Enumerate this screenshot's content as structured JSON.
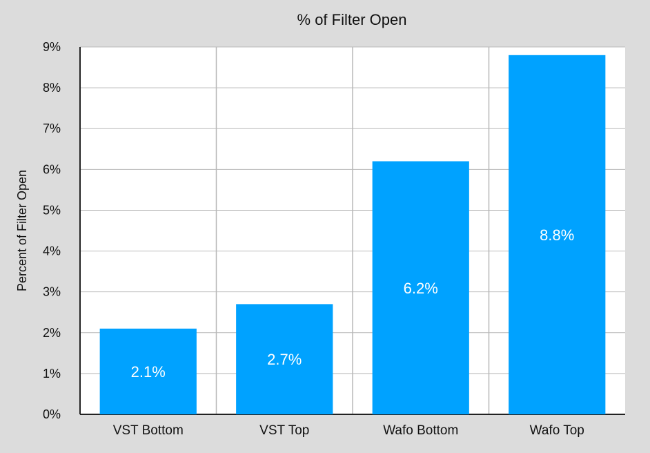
{
  "chart_data": {
    "type": "bar",
    "title": "% of Filter Open",
    "xlabel": "",
    "ylabel": "Percent of Filter Open",
    "categories": [
      "VST Bottom",
      "VST Top",
      "Wafo Bottom",
      "Wafo Top"
    ],
    "values": [
      2.1,
      2.7,
      6.2,
      8.8
    ],
    "value_labels": [
      "2.1%",
      "2.7%",
      "6.2%",
      "8.8%"
    ],
    "ylim": [
      0,
      9
    ],
    "yticks": [
      0,
      1,
      2,
      3,
      4,
      5,
      6,
      7,
      8,
      9
    ],
    "ytick_labels": [
      "0%",
      "1%",
      "2%",
      "3%",
      "4%",
      "5%",
      "6%",
      "7%",
      "8%",
      "9%"
    ],
    "grid": true,
    "legend": "none"
  },
  "colors": {
    "bar": "#00a2ff",
    "background": "#dcdcdc",
    "plot_background": "#ffffff",
    "grid": "#b8b8b8",
    "axis": "#222222",
    "value_text": "#ffffff"
  }
}
